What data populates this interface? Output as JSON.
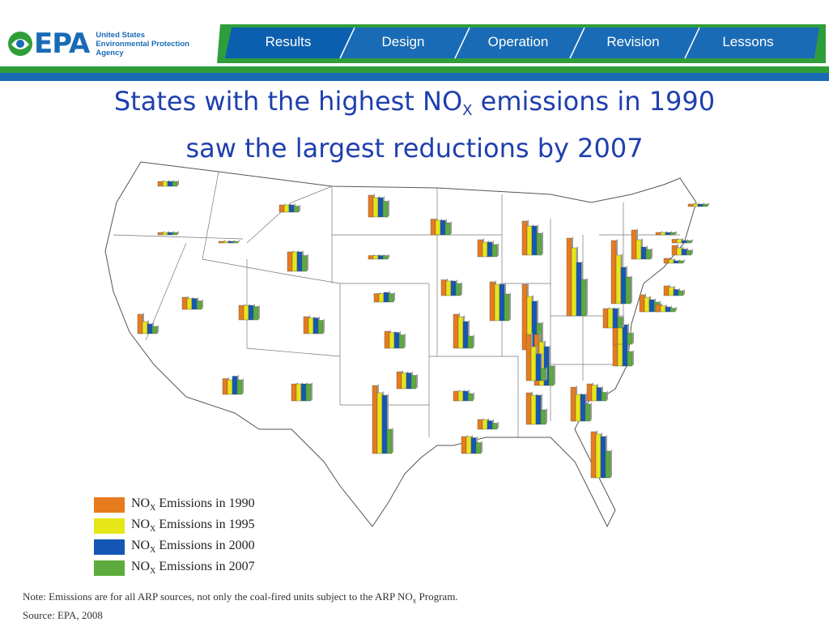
{
  "header": {
    "logo_text": "EPA",
    "agency_lines": [
      "United States",
      "Environmental Protection",
      "Agency"
    ],
    "nav": [
      "Results",
      "Design",
      "Operation",
      "Revision",
      "Lessons"
    ],
    "active_nav": "Results",
    "colors": {
      "green": "#2f9e3a",
      "blue": "#1a6bb5",
      "dark_blue": "#0b5fae"
    }
  },
  "title": {
    "line1_pre": "States with the highest NO",
    "line1_sub": "X",
    "line1_post": " emissions in 1990",
    "line2": "saw the largest reductions by 2007"
  },
  "chart_data": {
    "type": "bar",
    "map_background": "United States state outline map",
    "series": [
      {
        "name": "NOX Emissions in 1990",
        "label_pre": "NO",
        "label_sub": "X",
        "label_post": " Emissions in 1990",
        "color": "#e87b1e"
      },
      {
        "name": "NOX Emissions in 1995",
        "label_pre": "NO",
        "label_sub": "X",
        "label_post": " Emissions in 1995",
        "color": "#e6e619"
      },
      {
        "name": "NOX Emissions in 2000",
        "label_pre": "NO",
        "label_sub": "X",
        "label_post": " Emissions in 2000",
        "color": "#1457b5"
      },
      {
        "name": "NOX Emissions in 2007",
        "label_pre": "NO",
        "label_sub": "X",
        "label_post": " Emissions in 2007",
        "color": "#5cab3c"
      }
    ],
    "states": [
      {
        "state": "WA",
        "values": [
          0.4,
          0.4,
          0.4,
          0.4
        ]
      },
      {
        "state": "OR",
        "values": [
          0.2,
          0.2,
          0.2,
          0.2
        ]
      },
      {
        "state": "CA",
        "values": [
          1.6,
          1.0,
          0.8,
          0.6
        ]
      },
      {
        "state": "NV",
        "values": [
          1.0,
          0.9,
          0.9,
          0.7
        ]
      },
      {
        "state": "ID",
        "values": [
          0.1,
          0.1,
          0.1,
          0.1
        ]
      },
      {
        "state": "MT",
        "values": [
          0.6,
          0.6,
          0.6,
          0.5
        ]
      },
      {
        "state": "WY",
        "values": [
          1.6,
          1.6,
          1.6,
          1.3
        ]
      },
      {
        "state": "UT",
        "values": [
          1.2,
          1.2,
          1.2,
          1.1
        ]
      },
      {
        "state": "AZ",
        "values": [
          1.3,
          1.2,
          1.5,
          1.2
        ]
      },
      {
        "state": "CO",
        "values": [
          1.4,
          1.3,
          1.3,
          1.1
        ]
      },
      {
        "state": "NM",
        "values": [
          1.4,
          1.4,
          1.4,
          1.4
        ]
      },
      {
        "state": "ND",
        "values": [
          1.8,
          1.6,
          1.6,
          1.3
        ]
      },
      {
        "state": "SD",
        "values": [
          0.3,
          0.3,
          0.3,
          0.3
        ]
      },
      {
        "state": "NE",
        "values": [
          0.7,
          0.7,
          0.8,
          0.7
        ]
      },
      {
        "state": "KS",
        "values": [
          1.4,
          1.3,
          1.3,
          1.1
        ]
      },
      {
        "state": "OK",
        "values": [
          1.4,
          1.3,
          1.3,
          1.1
        ]
      },
      {
        "state": "TX",
        "values": [
          5.6,
          5.0,
          4.8,
          2.0
        ]
      },
      {
        "state": "MN",
        "values": [
          1.3,
          1.2,
          1.2,
          1.0
        ]
      },
      {
        "state": "IA",
        "values": [
          1.3,
          1.2,
          1.2,
          1.0
        ]
      },
      {
        "state": "MO",
        "values": [
          2.8,
          2.6,
          2.2,
          1.0
        ]
      },
      {
        "state": "AR",
        "values": [
          0.8,
          0.8,
          0.8,
          0.6
        ]
      },
      {
        "state": "LA",
        "values": [
          1.4,
          1.4,
          1.3,
          0.9
        ]
      },
      {
        "state": "WI",
        "values": [
          1.4,
          1.2,
          1.2,
          1.0
        ]
      },
      {
        "state": "IL",
        "values": [
          3.2,
          3.0,
          3.0,
          2.2
        ]
      },
      {
        "state": "MI",
        "values": [
          2.8,
          2.4,
          2.4,
          1.8
        ]
      },
      {
        "state": "IN",
        "values": [
          5.4,
          4.4,
          4.0,
          2.2
        ]
      },
      {
        "state": "KY",
        "values": [
          4.2,
          3.6,
          3.2,
          1.6
        ]
      },
      {
        "state": "TN",
        "values": [
          3.8,
          2.8,
          2.2,
          1.0
        ]
      },
      {
        "state": "MS",
        "values": [
          0.8,
          0.8,
          0.7,
          0.5
        ]
      },
      {
        "state": "AL",
        "values": [
          2.6,
          2.4,
          2.4,
          1.2
        ]
      },
      {
        "state": "GA",
        "values": [
          2.8,
          2.2,
          2.2,
          1.4
        ]
      },
      {
        "state": "FL",
        "values": [
          3.8,
          3.6,
          3.4,
          2.2
        ]
      },
      {
        "state": "SC",
        "values": [
          1.4,
          1.3,
          1.1,
          0.7
        ]
      },
      {
        "state": "NC",
        "values": [
          3.4,
          2.8,
          2.4,
          1.2
        ]
      },
      {
        "state": "VA",
        "values": [
          1.6,
          1.6,
          1.6,
          0.9
        ]
      },
      {
        "state": "WV",
        "values": [
          1.6,
          1.6,
          1.6,
          0.9
        ]
      },
      {
        "state": "OH",
        "values": [
          6.4,
          5.6,
          4.4,
          3.0
        ]
      },
      {
        "state": "PA",
        "values": [
          5.2,
          4.0,
          3.0,
          2.2
        ]
      },
      {
        "state": "NY",
        "values": [
          2.4,
          1.6,
          1.0,
          0.8
        ]
      },
      {
        "state": "MD",
        "values": [
          1.4,
          1.2,
          1.0,
          0.8
        ]
      },
      {
        "state": "NJ",
        "values": [
          0.8,
          0.7,
          0.5,
          0.4
        ]
      },
      {
        "state": "DE",
        "values": [
          0.6,
          0.5,
          0.4,
          0.3
        ]
      },
      {
        "state": "CT",
        "values": [
          0.4,
          0.3,
          0.2,
          0.2
        ]
      },
      {
        "state": "MA",
        "values": [
          0.8,
          0.6,
          0.5,
          0.4
        ]
      },
      {
        "state": "VT",
        "values": [
          0.2,
          0.2,
          0.2,
          0.2
        ]
      },
      {
        "state": "NH",
        "values": [
          0.3,
          0.3,
          0.2,
          0.2
        ]
      },
      {
        "state": "ME",
        "values": [
          0.2,
          0.2,
          0.2,
          0.2
        ]
      }
    ],
    "legend_position": "bottom-left"
  },
  "note": {
    "line1_pre": "Note: Emissions are for all ARP sources, not only the coal-fired units subject to the ARP NO",
    "line1_sub": "x",
    "line1_post": " Program.",
    "line2": "Source: EPA, 2008"
  }
}
